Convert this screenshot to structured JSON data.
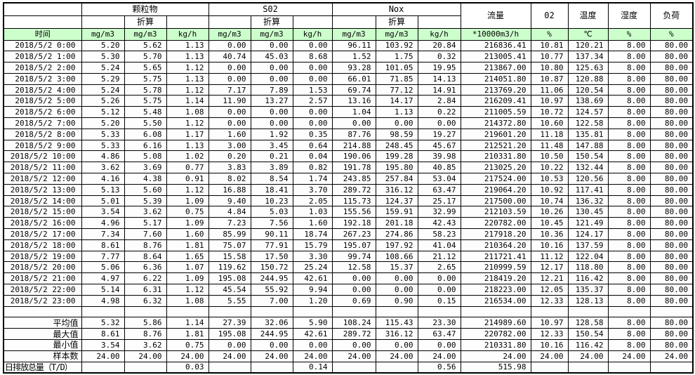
{
  "colors": {
    "header_green": "#ccffcc",
    "grid": "#000000",
    "text": "#000000",
    "background": "#ffffff"
  },
  "header": {
    "time": "时间",
    "groups": [
      {
        "label": "颗粒物",
        "converted_label": "折算",
        "units": [
          "mg/m3",
          "mg/m3",
          "kg/h"
        ]
      },
      {
        "label": "S02",
        "converted_label": "折算",
        "units": [
          "mg/m3",
          "mg/m3",
          "kg/h"
        ]
      },
      {
        "label": "Nox",
        "converted_label": "折算",
        "units": [
          "mg/m3",
          "mg/m3",
          "kg/h"
        ]
      }
    ],
    "singles": [
      {
        "label": "流量",
        "unit": "*10000m3/h"
      },
      {
        "label": "02",
        "unit": "%"
      },
      {
        "label": "温度",
        "unit": "℃"
      },
      {
        "label": "湿度",
        "unit": "%"
      },
      {
        "label": "负荷",
        "unit": "%"
      }
    ]
  },
  "rows": [
    {
      "time": "2018/5/2 0:00",
      "values": [
        "5.20",
        "5.62",
        "1.13",
        "0.00",
        "0.00",
        "0.00",
        "96.11",
        "103.92",
        "20.84",
        "216836.41",
        "10.81",
        "120.21",
        "8.00",
        "80.00"
      ]
    },
    {
      "time": "2018/5/2 1:00",
      "values": [
        "5.30",
        "5.70",
        "1.13",
        "40.74",
        "45.03",
        "8.68",
        "1.52",
        "1.75",
        "0.32",
        "213005.41",
        "10.77",
        "137.34",
        "8.00",
        "80.00"
      ]
    },
    {
      "time": "2018/5/2 2:00",
      "values": [
        "5.24",
        "5.65",
        "1.12",
        "0.00",
        "0.00",
        "0.00",
        "93.28",
        "101.05",
        "19.95",
        "213867.00",
        "10.80",
        "125.63",
        "8.00",
        "80.00"
      ]
    },
    {
      "time": "2018/5/2 3:00",
      "values": [
        "5.29",
        "5.75",
        "1.13",
        "0.00",
        "0.00",
        "0.00",
        "66.01",
        "71.85",
        "14.13",
        "214051.80",
        "10.87",
        "120.88",
        "8.00",
        "80.00"
      ]
    },
    {
      "time": "2018/5/2 4:00",
      "values": [
        "5.24",
        "5.78",
        "1.12",
        "7.17",
        "7.89",
        "1.53",
        "69.74",
        "77.12",
        "14.91",
        "213769.20",
        "11.06",
        "120.54",
        "8.00",
        "80.00"
      ]
    },
    {
      "time": "2018/5/2 5:00",
      "values": [
        "5.26",
        "5.75",
        "1.14",
        "11.90",
        "13.27",
        "2.57",
        "13.16",
        "14.17",
        "2.84",
        "216209.41",
        "10.97",
        "138.69",
        "8.00",
        "80.00"
      ]
    },
    {
      "time": "2018/5/2 6:00",
      "values": [
        "5.12",
        "5.48",
        "1.08",
        "0.00",
        "0.00",
        "0.00",
        "1.04",
        "1.13",
        "0.22",
        "211005.59",
        "10.72",
        "124.57",
        "8.00",
        "80.00"
      ]
    },
    {
      "time": "2018/5/2 7:00",
      "values": [
        "5.20",
        "5.50",
        "1.12",
        "0.00",
        "0.00",
        "0.00",
        "0.00",
        "0.00",
        "0.00",
        "214372.80",
        "10.60",
        "122.58",
        "8.00",
        "80.00"
      ]
    },
    {
      "time": "2018/5/2 8:00",
      "values": [
        "5.33",
        "6.08",
        "1.17",
        "1.60",
        "1.92",
        "0.35",
        "87.76",
        "98.59",
        "19.27",
        "219601.20",
        "11.18",
        "135.81",
        "8.00",
        "80.00"
      ]
    },
    {
      "time": "2018/5/2 9:00",
      "values": [
        "5.33",
        "6.16",
        "1.13",
        "3.00",
        "3.45",
        "0.64",
        "214.88",
        "248.45",
        "45.67",
        "212521.20",
        "11.48",
        "147.88",
        "8.00",
        "80.00"
      ]
    },
    {
      "time": "2018/5/2 10:00",
      "values": [
        "4.86",
        "5.08",
        "1.02",
        "0.20",
        "0.21",
        "0.04",
        "190.06",
        "199.28",
        "39.98",
        "210331.80",
        "10.50",
        "150.54",
        "8.00",
        "80.00"
      ]
    },
    {
      "time": "2018/5/2 11:00",
      "values": [
        "3.62",
        "3.69",
        "0.77",
        "3.83",
        "3.89",
        "0.82",
        "191.78",
        "195.80",
        "40.85",
        "213025.20",
        "10.22",
        "132.44",
        "8.00",
        "80.00"
      ]
    },
    {
      "time": "2018/5/2 12:00",
      "values": [
        "4.16",
        "4.38",
        "0.91",
        "8.02",
        "8.54",
        "1.74",
        "243.85",
        "257.84",
        "53.04",
        "217524.00",
        "10.53",
        "120.56",
        "8.00",
        "80.00"
      ]
    },
    {
      "time": "2018/5/2 13:00",
      "values": [
        "5.13",
        "5.60",
        "1.12",
        "16.88",
        "18.41",
        "3.70",
        "289.72",
        "316.12",
        "63.47",
        "219064.20",
        "10.92",
        "117.41",
        "8.00",
        "80.00"
      ]
    },
    {
      "time": "2018/5/2 14:00",
      "values": [
        "5.01",
        "5.39",
        "1.09",
        "9.40",
        "10.23",
        "2.05",
        "115.73",
        "124.37",
        "25.17",
        "217500.00",
        "10.74",
        "136.32",
        "8.00",
        "80.00"
      ]
    },
    {
      "time": "2018/5/2 15:00",
      "values": [
        "3.54",
        "3.62",
        "0.75",
        "4.84",
        "5.03",
        "1.03",
        "155.56",
        "159.91",
        "32.99",
        "212103.59",
        "10.26",
        "130.45",
        "8.00",
        "80.00"
      ]
    },
    {
      "time": "2018/5/2 16:00",
      "values": [
        "4.96",
        "5.17",
        "1.09",
        "7.23",
        "7.56",
        "1.60",
        "192.18",
        "201.18",
        "42.43",
        "220782.00",
        "10.45",
        "121.49",
        "8.00",
        "80.00"
      ]
    },
    {
      "time": "2018/5/2 17:00",
      "values": [
        "7.34",
        "7.60",
        "1.60",
        "85.99",
        "90.11",
        "18.74",
        "267.23",
        "274.86",
        "58.23",
        "217918.20",
        "10.36",
        "124.17",
        "8.00",
        "80.00"
      ]
    },
    {
      "time": "2018/5/2 18:00",
      "values": [
        "8.61",
        "8.76",
        "1.81",
        "75.07",
        "77.91",
        "15.79",
        "195.07",
        "197.92",
        "41.04",
        "210364.20",
        "10.16",
        "137.59",
        "8.00",
        "80.00"
      ]
    },
    {
      "time": "2018/5/2 19:00",
      "values": [
        "7.77",
        "8.64",
        "1.65",
        "15.58",
        "17.50",
        "3.30",
        "99.74",
        "108.66",
        "21.12",
        "211721.41",
        "11.12",
        "122.04",
        "8.00",
        "80.00"
      ]
    },
    {
      "time": "2018/5/2 20:00",
      "values": [
        "5.06",
        "6.36",
        "1.07",
        "119.62",
        "150.72",
        "25.24",
        "12.58",
        "15.37",
        "2.65",
        "210999.59",
        "12.17",
        "118.80",
        "8.00",
        "80.00"
      ]
    },
    {
      "time": "2018/5/2 21:00",
      "values": [
        "4.97",
        "6.22",
        "1.09",
        "195.08",
        "244.95",
        "42.61",
        "0.00",
        "0.00",
        "0.00",
        "218419.20",
        "12.21",
        "116.42",
        "8.00",
        "80.00"
      ]
    },
    {
      "time": "2018/5/2 22:00",
      "values": [
        "5.14",
        "6.31",
        "1.12",
        "45.54",
        "55.92",
        "9.94",
        "0.00",
        "0.00",
        "0.00",
        "218223.00",
        "12.05",
        "135.37",
        "8.00",
        "80.00"
      ]
    },
    {
      "time": "2018/5/2 23:00",
      "values": [
        "4.98",
        "6.32",
        "1.08",
        "5.55",
        "7.00",
        "1.20",
        "0.69",
        "0.90",
        "0.15",
        "216534.00",
        "12.33",
        "128.13",
        "8.00",
        "80.00"
      ]
    }
  ],
  "summary_rows": [
    {
      "label": "平均值",
      "values": [
        "5.32",
        "5.86",
        "1.14",
        "27.39",
        "32.06",
        "5.90",
        "108.24",
        "115.43",
        "23.30",
        "214989.60",
        "10.97",
        "128.58",
        "8.00",
        "80.00"
      ]
    },
    {
      "label": "最大值",
      "values": [
        "8.61",
        "8.76",
        "1.81",
        "195.08",
        "244.95",
        "42.61",
        "289.72",
        "316.12",
        "63.47",
        "220782.00",
        "12.33",
        "150.54",
        "8.00",
        "80.00"
      ]
    },
    {
      "label": "最小值",
      "values": [
        "3.54",
        "3.62",
        "0.75",
        "0.00",
        "0.00",
        "0.00",
        "0.00",
        "0.00",
        "0.00",
        "210331.80",
        "10.16",
        "116.42",
        "8.00",
        "80.00"
      ]
    },
    {
      "label": "样本数",
      "values": [
        "24.00",
        "24.00",
        "24.00",
        "24.00",
        "24.00",
        "24.00",
        "24.00",
        "24.00",
        "24.00",
        "24.00",
        "24.00",
        "24.00",
        "24.00",
        "24.00"
      ]
    }
  ],
  "daily_total_row": {
    "label": "日排放总量（T/D）",
    "values": [
      "",
      "",
      "0.03",
      "",
      "",
      "0.14",
      "",
      "",
      "0.56",
      "515.98",
      "",
      "",
      "",
      ""
    ]
  }
}
